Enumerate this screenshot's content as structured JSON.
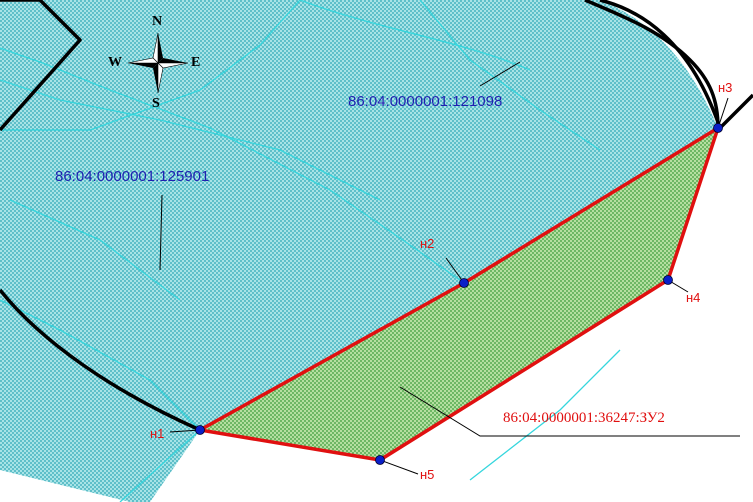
{
  "colors": {
    "existing_parcel_fill": "#a8e3e6",
    "existing_parcel_dots": "#2aa6b5",
    "new_plot_fill": "#b5dfa0",
    "new_plot_dots": "#3a9a3a",
    "new_plot_border": "#e01010",
    "boundary_line": "#000000",
    "cyan_lines": "#35d6dd",
    "point_marker": "#0a1fc8",
    "parcel_label_color": "#1f1fb0",
    "plot_label_color": "#e01010"
  },
  "compass": {
    "north": "N",
    "south": "S",
    "east": "E",
    "west": "W"
  },
  "parcels": [
    {
      "cadastral_number": "86:04:0000001:121098"
    },
    {
      "cadastral_number": "86:04:0000001:125901"
    }
  ],
  "new_plot": {
    "cadastral_number": "86:04:0000001:36247:ЗУ2"
  },
  "points": [
    {
      "label": "н1"
    },
    {
      "label": "н2"
    },
    {
      "label": "н3"
    },
    {
      "label": "н4"
    },
    {
      "label": "н5"
    }
  ]
}
